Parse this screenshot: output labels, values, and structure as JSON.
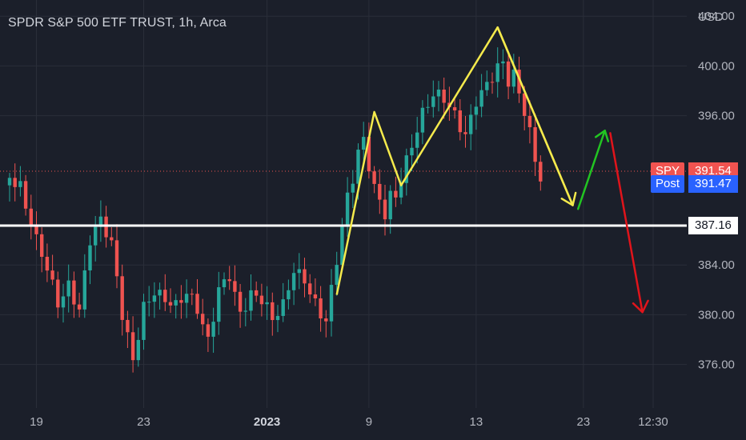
{
  "header": {
    "title": "SPDR S&P 500 ETF TRUST, 1h, Arca",
    "currency": "USD"
  },
  "colors": {
    "background": "#1b1f2a",
    "grid": "#2a2e39",
    "up_candle": "#26a69a",
    "down_candle": "#ef5350",
    "axis_text": "#b2b5be",
    "support_line": "#ffffff",
    "pattern_line": "#f5ea4c",
    "arrow_up": "#22c522",
    "arrow_down": "#e0141b",
    "last_price_bg": "#f05350",
    "post_price_bg": "#2962ff"
  },
  "chart_data": {
    "type": "candlestick",
    "symbol": "SPY",
    "interval": "1h",
    "exchange": "Arca",
    "y_ticks": [
      "404.00",
      "400.00",
      "396.00",
      "384.00",
      "380.00",
      "376.00"
    ],
    "ylim": [
      372.5,
      405.3
    ],
    "x_ticks": [
      {
        "label": "19",
        "bar": 5
      },
      {
        "label": "23",
        "bar": 25
      },
      {
        "label": "2023",
        "bar": 48
      },
      {
        "label": "9",
        "bar": 67
      },
      {
        "label": "13",
        "bar": 87
      },
      {
        "label": "23",
        "bar": 107
      },
      {
        "label": "12:30",
        "bar": 120
      }
    ],
    "last_price": {
      "label": "SPY",
      "value": "391.54",
      "raw": 391.54
    },
    "post_price": {
      "label": "Post",
      "value": "391.47",
      "raw": 391.47
    },
    "support_level": {
      "value": "387.16",
      "raw": 387.16
    },
    "grid": true,
    "candle_anchors": [
      [
        0,
        391.0
      ],
      [
        2,
        389.6
      ],
      [
        3,
        387.8
      ],
      [
        5,
        385.2
      ],
      [
        7,
        383.6
      ],
      [
        9,
        381.5
      ],
      [
        11,
        383.2
      ],
      [
        13,
        381.0
      ],
      [
        15,
        386.0
      ],
      [
        17,
        386.9
      ],
      [
        19,
        384.8
      ],
      [
        21,
        379.6
      ],
      [
        23,
        376.6
      ],
      [
        25,
        381.4
      ],
      [
        27,
        382.7
      ],
      [
        29,
        381.5
      ],
      [
        31,
        380.2
      ],
      [
        33,
        380.9
      ],
      [
        35,
        379.8
      ],
      [
        37,
        377.8
      ],
      [
        39,
        382.7
      ],
      [
        41,
        384.1
      ],
      [
        43,
        380.6
      ],
      [
        45,
        381.4
      ],
      [
        47,
        380.5
      ],
      [
        49,
        378.8
      ],
      [
        51,
        380.4
      ],
      [
        53,
        384.0
      ],
      [
        55,
        383.7
      ],
      [
        57,
        381.6
      ],
      [
        59,
        379.6
      ],
      [
        61,
        383.9
      ],
      [
        63,
        388.6
      ],
      [
        64,
        390.2
      ],
      [
        65,
        392.4
      ],
      [
        66,
        393.8
      ],
      [
        67,
        392.1
      ],
      [
        68,
        390.6
      ],
      [
        69,
        389.9
      ],
      [
        70,
        389.0
      ],
      [
        71,
        390.4
      ],
      [
        72,
        390.2
      ],
      [
        73,
        391.4
      ],
      [
        74,
        392.4
      ],
      [
        75,
        393.3
      ],
      [
        77,
        395.3
      ],
      [
        79,
        396.9
      ],
      [
        81,
        397.2
      ],
      [
        83,
        396.5
      ],
      [
        85,
        395.3
      ],
      [
        87,
        397.9
      ],
      [
        89,
        398.5
      ],
      [
        91,
        399.2
      ],
      [
        92,
        399.4
      ],
      [
        93,
        397.9
      ],
      [
        94,
        398.5
      ],
      [
        95,
        397.3
      ],
      [
        96,
        396.2
      ],
      [
        97,
        394.8
      ],
      [
        98,
        393.0
      ],
      [
        99,
        391.8
      ]
    ],
    "annotations": {
      "pattern": [
        [
          61,
          381.6
        ],
        [
          68,
          396.3
        ],
        [
          73,
          390.4
        ],
        [
          91,
          403.1
        ],
        [
          105,
          388.8
        ]
      ],
      "arrow_up": [
        [
          106,
          388.5
        ],
        [
          111,
          394.8
        ]
      ],
      "arrow_down": [
        [
          112,
          394.6
        ],
        [
          118,
          380.2
        ]
      ]
    }
  }
}
